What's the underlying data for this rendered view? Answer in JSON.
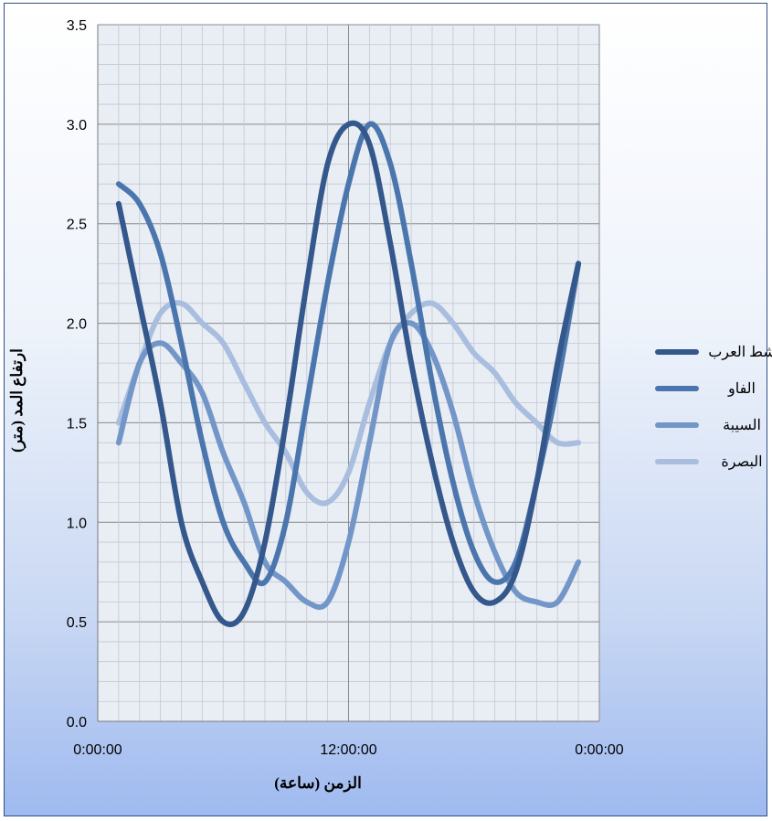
{
  "chart_data": {
    "type": "line",
    "title": "",
    "xlabel": "الزمن (ساعة)",
    "ylabel": "ارتفاع المد (متر)",
    "ylim": [
      0,
      3.5
    ],
    "y_ticks": [
      "0.0",
      "0.5",
      "1.0",
      "1.5",
      "2.0",
      "2.5",
      "3.0",
      "3.5"
    ],
    "x_unit": "hours",
    "xlim": [
      0,
      24
    ],
    "x_ticks": [
      {
        "value": 0,
        "label": "0:00:00"
      },
      {
        "value": 12,
        "label": "12:00:00"
      },
      {
        "value": 24,
        "label": "0:00:00"
      }
    ],
    "grid": true,
    "legend_position": "right",
    "series": [
      {
        "name": "شط العرب",
        "color": "#34578c",
        "points": [
          [
            1,
            2.6
          ],
          [
            2,
            2.1
          ],
          [
            3,
            1.6
          ],
          [
            4,
            1.0
          ],
          [
            5,
            0.7
          ],
          [
            6,
            0.5
          ],
          [
            7,
            0.55
          ],
          [
            8,
            0.9
          ],
          [
            9,
            1.5
          ],
          [
            10,
            2.2
          ],
          [
            11,
            2.8
          ],
          [
            12,
            3.0
          ],
          [
            13,
            2.9
          ],
          [
            14,
            2.4
          ],
          [
            15,
            1.8
          ],
          [
            16,
            1.3
          ],
          [
            17,
            0.9
          ],
          [
            18,
            0.65
          ],
          [
            19,
            0.6
          ],
          [
            20,
            0.75
          ],
          [
            21,
            1.2
          ],
          [
            22,
            1.8
          ],
          [
            23,
            2.3
          ]
        ]
      },
      {
        "name": "الفاو",
        "color": "#4b76ad",
        "points": [
          [
            1,
            2.7
          ],
          [
            2,
            2.6
          ],
          [
            3,
            2.35
          ],
          [
            4,
            1.9
          ],
          [
            5,
            1.4
          ],
          [
            6,
            1.0
          ],
          [
            7,
            0.8
          ],
          [
            8,
            0.7
          ],
          [
            9,
            1.0
          ],
          [
            10,
            1.6
          ],
          [
            11,
            2.2
          ],
          [
            12,
            2.7
          ],
          [
            13,
            3.0
          ],
          [
            14,
            2.8
          ],
          [
            15,
            2.3
          ],
          [
            16,
            1.7
          ],
          [
            17,
            1.2
          ],
          [
            18,
            0.85
          ],
          [
            19,
            0.7
          ],
          [
            20,
            0.8
          ],
          [
            21,
            1.2
          ],
          [
            22,
            1.7
          ],
          [
            23,
            2.3
          ]
        ]
      },
      {
        "name": "السيبة",
        "color": "#7396c8",
        "points": [
          [
            1,
            1.4
          ],
          [
            2,
            1.8
          ],
          [
            3,
            1.9
          ],
          [
            4,
            1.8
          ],
          [
            5,
            1.65
          ],
          [
            6,
            1.35
          ],
          [
            7,
            1.1
          ],
          [
            8,
            0.8
          ],
          [
            9,
            0.7
          ],
          [
            10,
            0.6
          ],
          [
            11,
            0.6
          ],
          [
            12,
            0.9
          ],
          [
            13,
            1.4
          ],
          [
            14,
            1.9
          ],
          [
            15,
            2.0
          ],
          [
            16,
            1.85
          ],
          [
            17,
            1.55
          ],
          [
            18,
            1.15
          ],
          [
            19,
            0.85
          ],
          [
            20,
            0.65
          ],
          [
            21,
            0.6
          ],
          [
            22,
            0.6
          ],
          [
            23,
            0.8
          ]
        ]
      },
      {
        "name": "البصرة",
        "color": "#a9bedf",
        "points": [
          [
            1,
            1.5
          ],
          [
            2,
            1.8
          ],
          [
            3,
            2.05
          ],
          [
            4,
            2.1
          ],
          [
            5,
            2.0
          ],
          [
            6,
            1.9
          ],
          [
            7,
            1.7
          ],
          [
            8,
            1.5
          ],
          [
            9,
            1.35
          ],
          [
            10,
            1.15
          ],
          [
            11,
            1.1
          ],
          [
            12,
            1.25
          ],
          [
            13,
            1.6
          ],
          [
            14,
            1.9
          ],
          [
            15,
            2.05
          ],
          [
            16,
            2.1
          ],
          [
            17,
            2.0
          ],
          [
            18,
            1.85
          ],
          [
            19,
            1.75
          ],
          [
            20,
            1.6
          ],
          [
            21,
            1.5
          ],
          [
            22,
            1.4
          ],
          [
            23,
            1.4
          ]
        ]
      }
    ]
  }
}
